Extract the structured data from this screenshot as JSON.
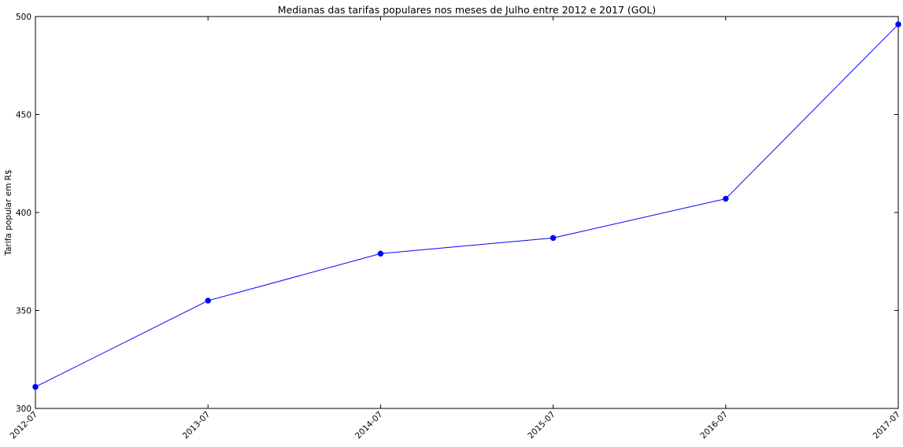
{
  "chart_data": {
    "type": "line",
    "title": "Medianas das tarifas populares nos meses de Julho entre 2012 e 2017 (GOL)",
    "xlabel": "",
    "ylabel": "Tarifa popular em R$",
    "ylim": [
      300,
      500
    ],
    "yticks": [
      "300",
      "350",
      "400",
      "450",
      "500"
    ],
    "categories": [
      "2012-07",
      "2013-07",
      "2014-07",
      "2015-07",
      "2016-07",
      "2017-07"
    ],
    "values": [
      311,
      355,
      379,
      387,
      407,
      496
    ],
    "grid": false,
    "legend": "none",
    "colors": {
      "line": "#0000ff",
      "marker": "#0000ff",
      "axis": "#000000"
    }
  }
}
